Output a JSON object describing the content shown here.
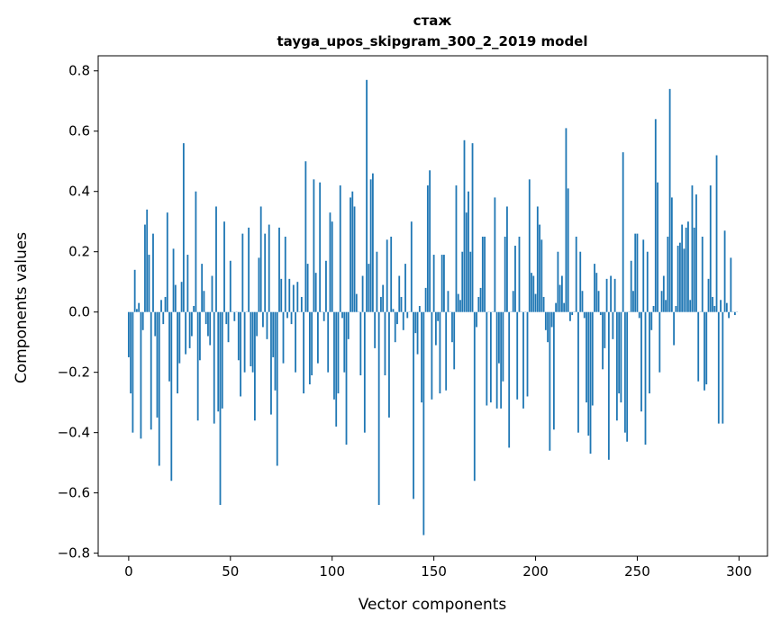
{
  "chart_data": {
    "type": "bar",
    "title": "стаж",
    "subtitle": "tayga_upos_skipgram_300_2_2019 model",
    "xlabel": "Vector components",
    "ylabel": "Components values",
    "xlim": [
      -15,
      314
    ],
    "ylim": [
      -0.81,
      0.85
    ],
    "xticks": [
      0,
      50,
      100,
      150,
      200,
      250,
      300
    ],
    "yticks": [
      -0.8,
      -0.6,
      -0.4,
      -0.2,
      0.0,
      0.2,
      0.4,
      0.6,
      0.8
    ],
    "ytick_labels": [
      "−0.8",
      "−0.6",
      "−0.4",
      "−0.2",
      "0.0",
      "0.2",
      "0.4",
      "0.6",
      "0.8"
    ],
    "grid": false,
    "color": "#1f77b4",
    "values": [
      -0.15,
      -0.27,
      -0.4,
      0.14,
      0.01,
      0.03,
      -0.42,
      -0.06,
      0.29,
      0.34,
      0.19,
      -0.39,
      0.26,
      -0.08,
      -0.35,
      -0.51,
      0.04,
      -0.04,
      0.05,
      0.33,
      -0.23,
      -0.56,
      0.21,
      0.09,
      -0.27,
      -0.17,
      0.1,
      0.56,
      -0.14,
      0.19,
      -0.12,
      -0.08,
      0.02,
      0.4,
      -0.36,
      -0.16,
      0.16,
      0.07,
      -0.04,
      -0.08,
      -0.11,
      0.12,
      -0.37,
      0.35,
      -0.33,
      -0.64,
      -0.32,
      0.3,
      -0.04,
      -0.1,
      0.17,
      0.0,
      -0.03,
      0.0,
      -0.16,
      -0.28,
      0.26,
      -0.2,
      0.0,
      0.28,
      -0.18,
      -0.2,
      -0.36,
      -0.08,
      0.18,
      0.35,
      -0.05,
      0.26,
      -0.09,
      0.29,
      -0.34,
      -0.15,
      -0.26,
      -0.51,
      0.28,
      0.11,
      -0.17,
      0.25,
      -0.02,
      0.11,
      -0.04,
      0.09,
      -0.2,
      0.1,
      0.0,
      0.05,
      -0.27,
      0.5,
      0.16,
      -0.24,
      -0.21,
      0.44,
      0.13,
      -0.17,
      0.43,
      0.0,
      -0.03,
      0.17,
      -0.2,
      0.33,
      0.3,
      -0.29,
      -0.38,
      -0.27,
      0.42,
      -0.02,
      -0.2,
      -0.44,
      -0.09,
      0.38,
      0.4,
      0.35,
      0.06,
      0.0,
      -0.21,
      0.12,
      -0.4,
      0.77,
      0.16,
      0.44,
      0.46,
      -0.12,
      0.2,
      -0.64,
      0.05,
      0.09,
      -0.21,
      0.24,
      -0.35,
      0.25,
      0.01,
      -0.1,
      -0.04,
      0.12,
      0.05,
      -0.06,
      0.16,
      -0.02,
      0.0,
      0.3,
      -0.62,
      -0.07,
      -0.14,
      0.02,
      -0.3,
      -0.74,
      0.08,
      0.42,
      0.47,
      -0.29,
      0.19,
      -0.11,
      -0.03,
      -0.27,
      0.19,
      0.19,
      -0.26,
      0.07,
      0.0,
      -0.1,
      -0.19,
      0.42,
      0.06,
      0.04,
      0.2,
      0.57,
      0.33,
      0.4,
      0.2,
      0.56,
      -0.56,
      -0.05,
      0.05,
      0.08,
      0.25,
      0.25,
      -0.31,
      0.0,
      -0.3,
      0.0,
      0.38,
      -0.32,
      -0.17,
      -0.32,
      -0.23,
      0.25,
      0.35,
      -0.45,
      0.0,
      0.07,
      0.22,
      -0.29,
      0.25,
      0.0,
      -0.32,
      0.0,
      -0.28,
      0.44,
      0.13,
      0.12,
      0.06,
      0.35,
      0.29,
      0.24,
      0.05,
      -0.06,
      -0.1,
      -0.46,
      -0.05,
      -0.39,
      0.03,
      0.2,
      0.09,
      0.12,
      0.03,
      0.61,
      0.41,
      -0.03,
      -0.01,
      0.0,
      0.25,
      -0.4,
      0.2,
      0.07,
      -0.02,
      -0.3,
      -0.41,
      -0.47,
      -0.31,
      0.16,
      0.13,
      0.07,
      -0.01,
      -0.19,
      -0.12,
      0.11,
      -0.49,
      0.12,
      -0.09,
      0.11,
      -0.36,
      -0.27,
      -0.3,
      0.53,
      -0.4,
      -0.43,
      0.0,
      0.17,
      0.07,
      0.26,
      0.26,
      -0.02,
      -0.33,
      0.24,
      -0.44,
      0.2,
      -0.27,
      -0.06,
      0.02,
      0.64,
      0.43,
      -0.2,
      0.07,
      0.12,
      0.04,
      0.25,
      0.74,
      0.38,
      -0.11,
      0.02,
      0.22,
      0.23,
      0.29,
      0.21,
      0.28,
      0.3,
      0.04,
      0.42,
      0.28,
      0.39,
      -0.23,
      0.0,
      0.25,
      -0.26,
      -0.24,
      0.11,
      0.42,
      0.05,
      0.02,
      0.52,
      -0.37,
      0.04,
      -0.37,
      0.27,
      0.03,
      -0.02,
      0.18,
      0.0,
      -0.01,
      0.0
    ]
  }
}
